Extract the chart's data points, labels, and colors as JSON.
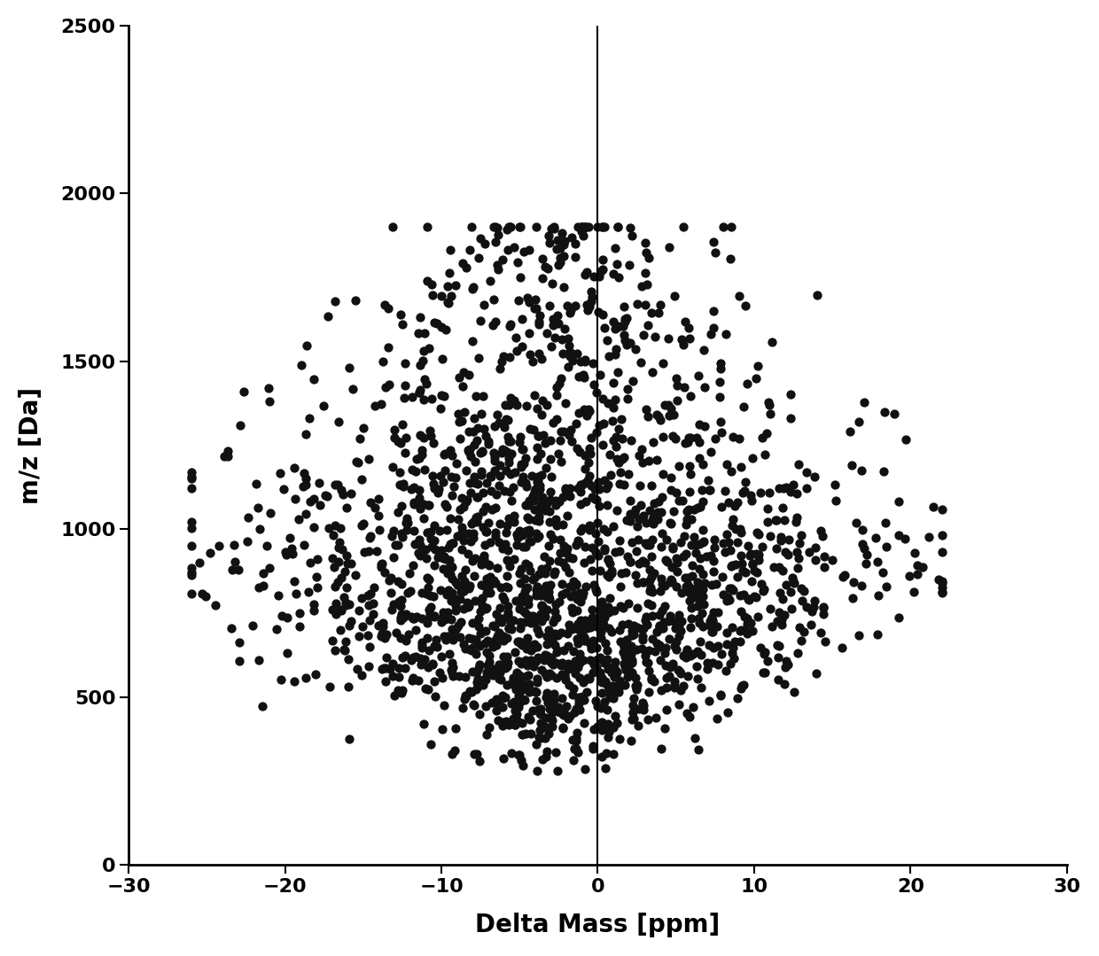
{
  "title": "",
  "xlabel": "Delta Mass [ppm]",
  "ylabel": "m/z [Da]",
  "xlim": [
    -30,
    30
  ],
  "ylim": [
    0,
    2500
  ],
  "xticks": [
    -30,
    -20,
    -10,
    0,
    10,
    20,
    30
  ],
  "yticks": [
    0,
    500,
    1000,
    1500,
    2000,
    2500
  ],
  "vline_x": 0,
  "dot_color": "#111111",
  "dot_size": 55,
  "background_color": "#ffffff",
  "n_points": 2200,
  "seed": 77
}
